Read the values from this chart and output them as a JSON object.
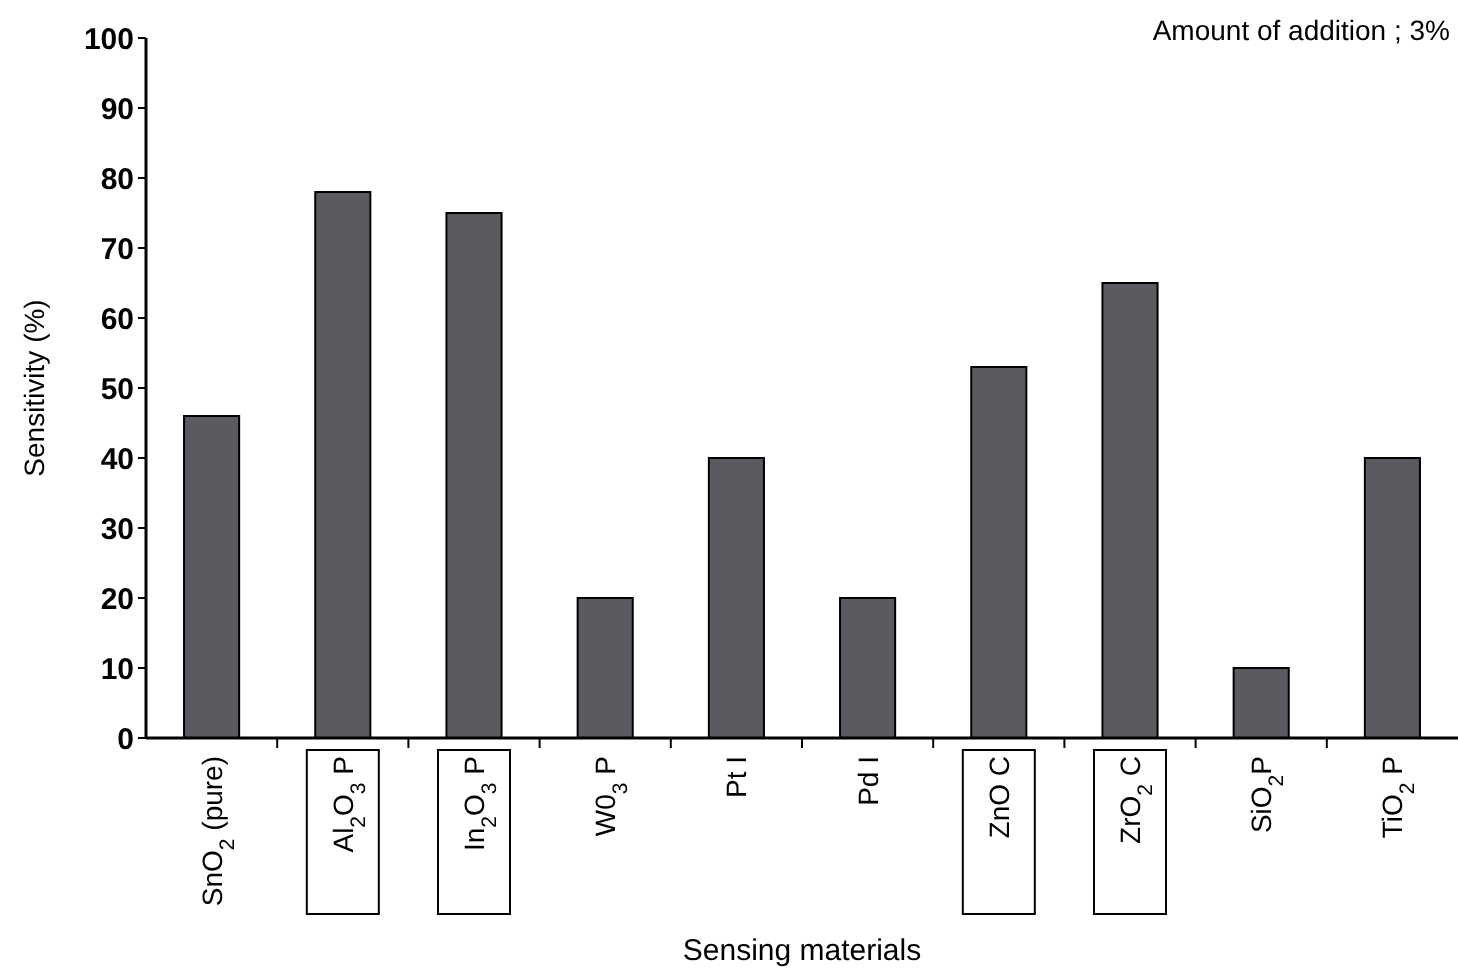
{
  "chart_data": {
    "type": "bar",
    "categories": [
      "SnO$_{2}$ (pure)",
      "Al$_{2}$O$_{3}$ P",
      "In$_{2}$O$_{3}$ P",
      "W0$_{3}$ P",
      "Pt I",
      "Pd I",
      "ZnO C",
      "ZrO$_{2}$ C",
      "SiO$_{2}$P",
      "TiO$_{2}$ P"
    ],
    "values": [
      46,
      78,
      75,
      20,
      40,
      20,
      53,
      65,
      10,
      40
    ],
    "color": "#5a5b60",
    "xlabel": "Sensing materials",
    "ylabel": "Sensitivity (%)",
    "ylim": [
      0,
      100
    ],
    "yticks": [
      0,
      10,
      20,
      30,
      40,
      50,
      60,
      70,
      80,
      90,
      100
    ],
    "annotations": [
      "Amount of addition ; 3%"
    ]
  }
}
